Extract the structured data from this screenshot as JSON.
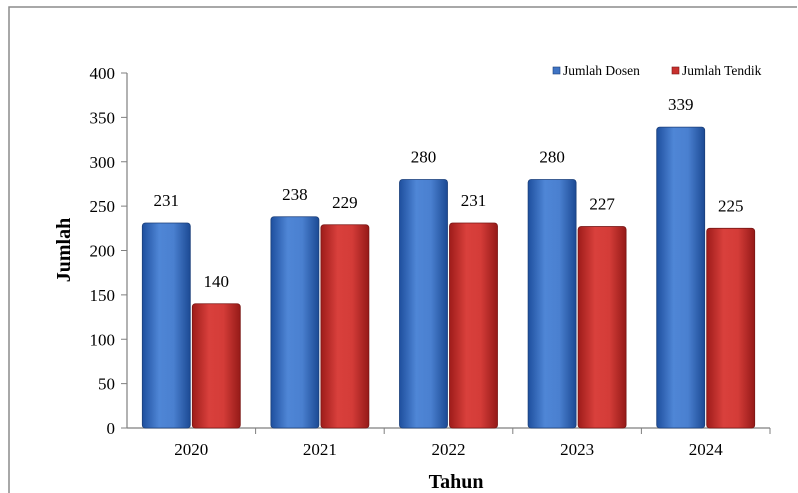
{
  "chart_data": {
    "type": "bar",
    "title": "",
    "xlabel": "Tahun",
    "ylabel": "Jumlah",
    "categories": [
      "2020",
      "2021",
      "2022",
      "2023",
      "2024"
    ],
    "yticks": [
      "0",
      "50",
      "100",
      "150",
      "200",
      "250",
      "300",
      "350",
      "400"
    ],
    "ylim": [
      0,
      400
    ],
    "grid": false,
    "legend_position": "top-right",
    "series": [
      {
        "name": "Jumlah Dosen",
        "color": "#3F74C4",
        "values": [
          231,
          238,
          280,
          280,
          339
        ],
        "labels": [
          "231",
          "238",
          "280",
          "280",
          "339"
        ]
      },
      {
        "name": "Jumlah Tendik",
        "color": "#C8302E",
        "values": [
          140,
          229,
          231,
          227,
          225
        ],
        "labels": [
          "140",
          "229",
          "231",
          "227",
          "225"
        ]
      }
    ]
  }
}
